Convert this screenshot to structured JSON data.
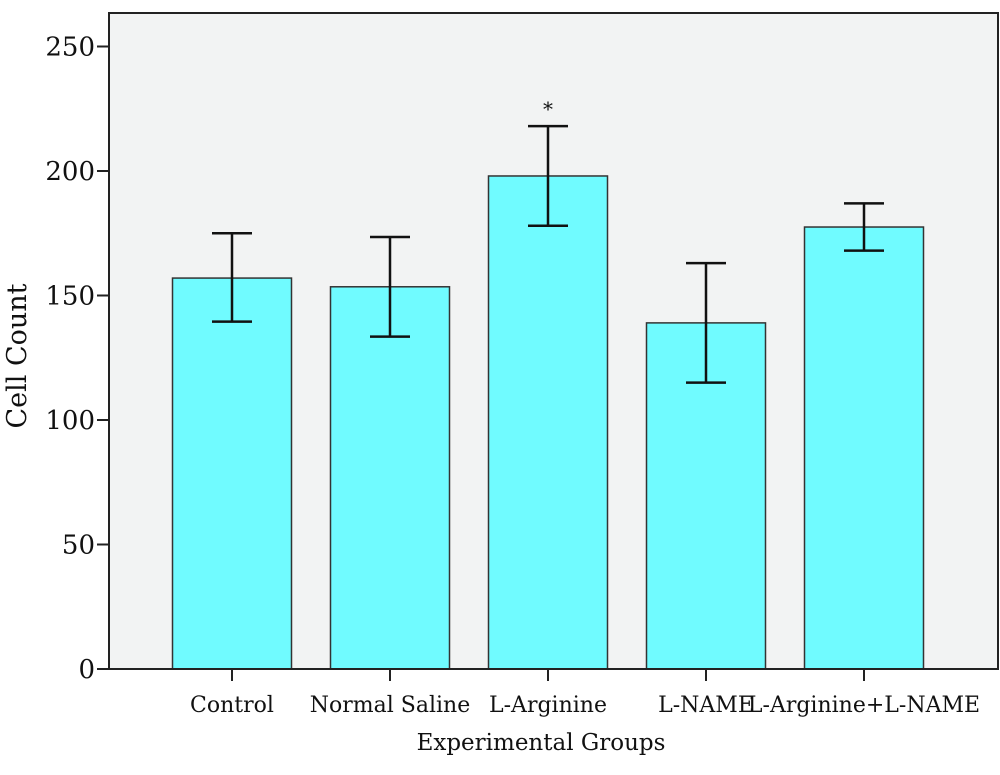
{
  "chart_data": {
    "type": "bar",
    "title": "",
    "xlabel": "Experimental Groups",
    "ylabel": "Cell Count",
    "categories": [
      "Control",
      "Normal Saline",
      "L-Arginine",
      "L-NAME",
      "L-Arginine+L-NAME"
    ],
    "values": [
      157,
      153.5,
      198,
      139,
      177.5
    ],
    "error_low": [
      139.5,
      133.5,
      178,
      115,
      168
    ],
    "error_high": [
      175,
      173.5,
      218,
      163,
      187
    ],
    "annotations": [
      {
        "category": "L-Arginine",
        "text": "*"
      }
    ],
    "ylim": [
      0,
      250
    ],
    "yticks": [
      "0",
      "50",
      "100",
      "150",
      "200",
      "250"
    ],
    "grid": false,
    "legend": "none",
    "colors": {
      "bar": "#70fbff",
      "bar_edge": "#333333",
      "plot_bg": "#f2f3f3",
      "error": "#111111"
    }
  }
}
